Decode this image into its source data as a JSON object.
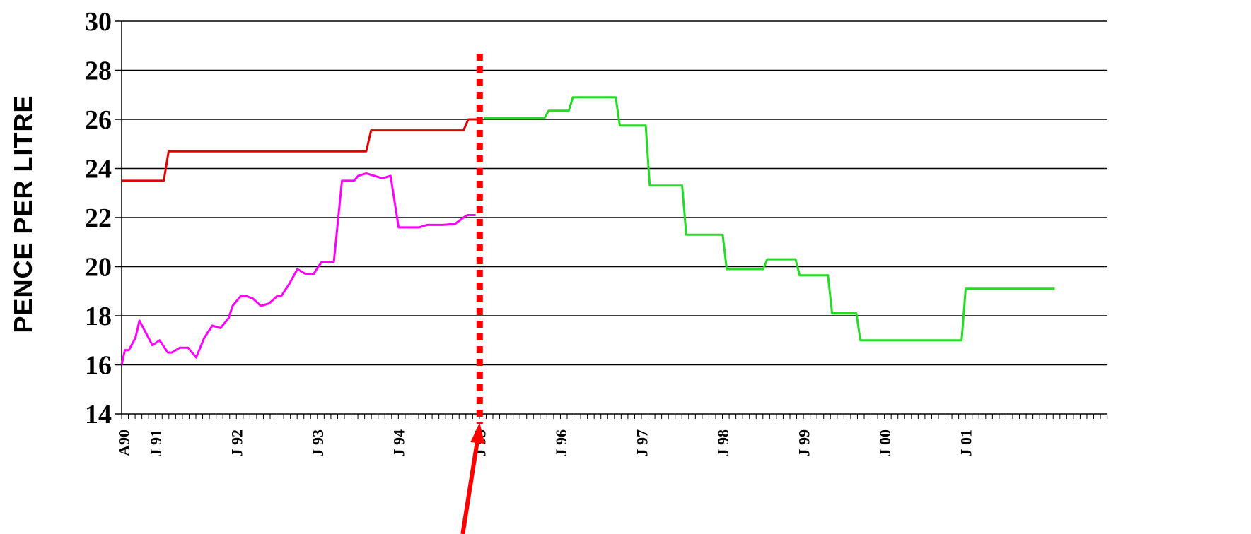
{
  "chart_data": {
    "type": "line",
    "title": "",
    "xlabel": "",
    "ylabel": "PENCE PER LITRE",
    "ylim": [
      14,
      30
    ],
    "yticks": [
      14,
      16,
      18,
      20,
      22,
      24,
      26,
      28,
      30
    ],
    "grid": true,
    "legend": "none",
    "x_tick_labels": [
      "A90",
      "J 91",
      "J 92",
      "J 93",
      "J 94",
      "J 95",
      "J 96",
      "J 97",
      "J 98",
      "J 99",
      "J 00",
      "J 01"
    ],
    "marker_line": {
      "x": 1995.0,
      "style": "dotted",
      "color": "#ff0000"
    },
    "annotation_arrow": {
      "target_x": 1995.0,
      "color": "#ff0000"
    },
    "series": [
      {
        "color": "#e40000",
        "x": [
          1990.58,
          1991.1,
          1991.16,
          1993.6,
          1993.66,
          1994.8,
          1994.86,
          1995.0
        ],
        "y": [
          23.5,
          23.5,
          24.7,
          24.7,
          25.55,
          25.55,
          26.0,
          26.0
        ]
      },
      {
        "color": "#ff00ff",
        "x": [
          1990.58,
          1990.62,
          1990.67,
          1990.75,
          1990.8,
          1990.96,
          1991.05,
          1991.15,
          1991.2,
          1991.3,
          1991.4,
          1991.5,
          1991.6,
          1991.7,
          1991.8,
          1991.9,
          1991.95,
          1992.05,
          1992.12,
          1992.2,
          1992.3,
          1992.4,
          1992.5,
          1992.55,
          1992.65,
          1992.75,
          1992.85,
          1992.95,
          1993.05,
          1993.15,
          1993.2,
          1993.3,
          1993.35,
          1993.45,
          1993.5,
          1993.6,
          1993.8,
          1993.9,
          1994.0,
          1994.05,
          1994.1,
          1994.25,
          1994.35,
          1994.45,
          1994.55,
          1994.7,
          1994.8,
          1994.85,
          1994.95
        ],
        "y": [
          16.0,
          16.6,
          16.6,
          17.1,
          17.8,
          16.8,
          17.0,
          16.5,
          16.5,
          16.7,
          16.7,
          16.3,
          17.1,
          17.6,
          17.5,
          17.9,
          18.4,
          18.8,
          18.8,
          18.7,
          18.4,
          18.5,
          18.8,
          18.8,
          19.3,
          19.9,
          19.7,
          19.7,
          20.2,
          20.2,
          20.2,
          23.5,
          23.5,
          23.5,
          23.7,
          23.8,
          23.6,
          23.7,
          21.6,
          21.6,
          21.6,
          21.6,
          21.7,
          21.7,
          21.7,
          21.75,
          22.0,
          22.1,
          22.1
        ]
      },
      {
        "color": "#22dd22",
        "x": [
          1995.05,
          1995.8,
          1995.85,
          1996.1,
          1996.15,
          1996.5,
          1996.55,
          1996.68,
          1996.73,
          1997.05,
          1997.1,
          1997.5,
          1997.55,
          1998.0,
          1998.05,
          1998.3,
          1998.35,
          1998.5,
          1998.55,
          1998.9,
          1998.95,
          1999.3,
          1999.35,
          1999.65,
          1999.7,
          2000.0,
          2000.05,
          2000.95,
          2001.0,
          2002.1
        ],
        "y": [
          26.05,
          26.05,
          26.35,
          26.35,
          26.9,
          26.9,
          26.9,
          26.9,
          25.75,
          25.75,
          23.3,
          23.3,
          21.3,
          21.3,
          19.9,
          19.9,
          19.9,
          19.9,
          20.3,
          20.3,
          19.65,
          19.65,
          18.1,
          18.1,
          17.0,
          17.0,
          17.0,
          17.0,
          19.1,
          19.1
        ]
      }
    ]
  }
}
